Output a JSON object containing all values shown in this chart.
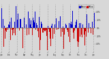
{
  "background_color": "#d8d8d8",
  "plot_bg_color": "#d8d8d8",
  "bar_above_color": "#0000cc",
  "bar_below_color": "#cc0000",
  "legend_above_label": "Above",
  "legend_below_label": "Below",
  "num_days": 365,
  "ylim": [
    -60,
    60
  ],
  "ytick_positions": [
    -40,
    -20,
    0,
    20,
    40
  ],
  "ytick_labels": [
    "40%",
    "20%",
    "0%",
    "20%",
    "40%"
  ],
  "grid_color": "#aaaaaa",
  "grid_style": "--",
  "seed": 99,
  "bar_width": 0.9
}
